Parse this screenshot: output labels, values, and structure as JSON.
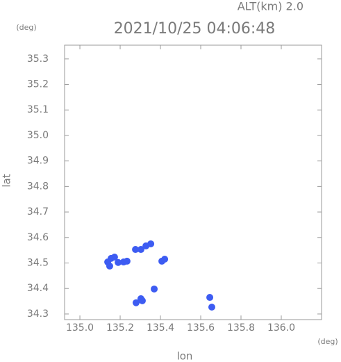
{
  "chart_data": {
    "type": "scatter",
    "title": "2021/10/25 04:06:48",
    "subtitle": "ALT(km) 2.0",
    "x_label": "lon",
    "y_label": "lat",
    "x_unit": "(deg)",
    "y_unit": "(deg)",
    "x": [
      135.138,
      135.155,
      135.172,
      135.148,
      135.19,
      135.217,
      135.234,
      135.276,
      135.303,
      135.328,
      135.352,
      135.407,
      135.421,
      135.369,
      135.303,
      135.31,
      135.279,
      135.645,
      135.655
    ],
    "series": [
      {
        "color": "#3d5cf2",
        "values": [
          34.504,
          34.518,
          34.523,
          34.488,
          34.502,
          34.504,
          34.507,
          34.553,
          34.553,
          34.567,
          34.575,
          34.507,
          34.515,
          34.398,
          34.36,
          34.352,
          34.344,
          34.365,
          34.327
        ]
      }
    ],
    "xlim": [
      134.924,
      136.2
    ],
    "ylim": [
      34.278,
      35.354
    ],
    "xticks": [
      {
        "value": 135,
        "label": "135.0"
      },
      135.2,
      135.4,
      135.6,
      135.8,
      {
        "value": 136,
        "label": "136.0"
      }
    ],
    "yticks": [
      34.3,
      34.4,
      34.5,
      34.6,
      34.7,
      34.8,
      34.9,
      {
        "value": 35,
        "label": "35.0"
      },
      35.1,
      35.2,
      35.3
    ],
    "grid": false
  }
}
